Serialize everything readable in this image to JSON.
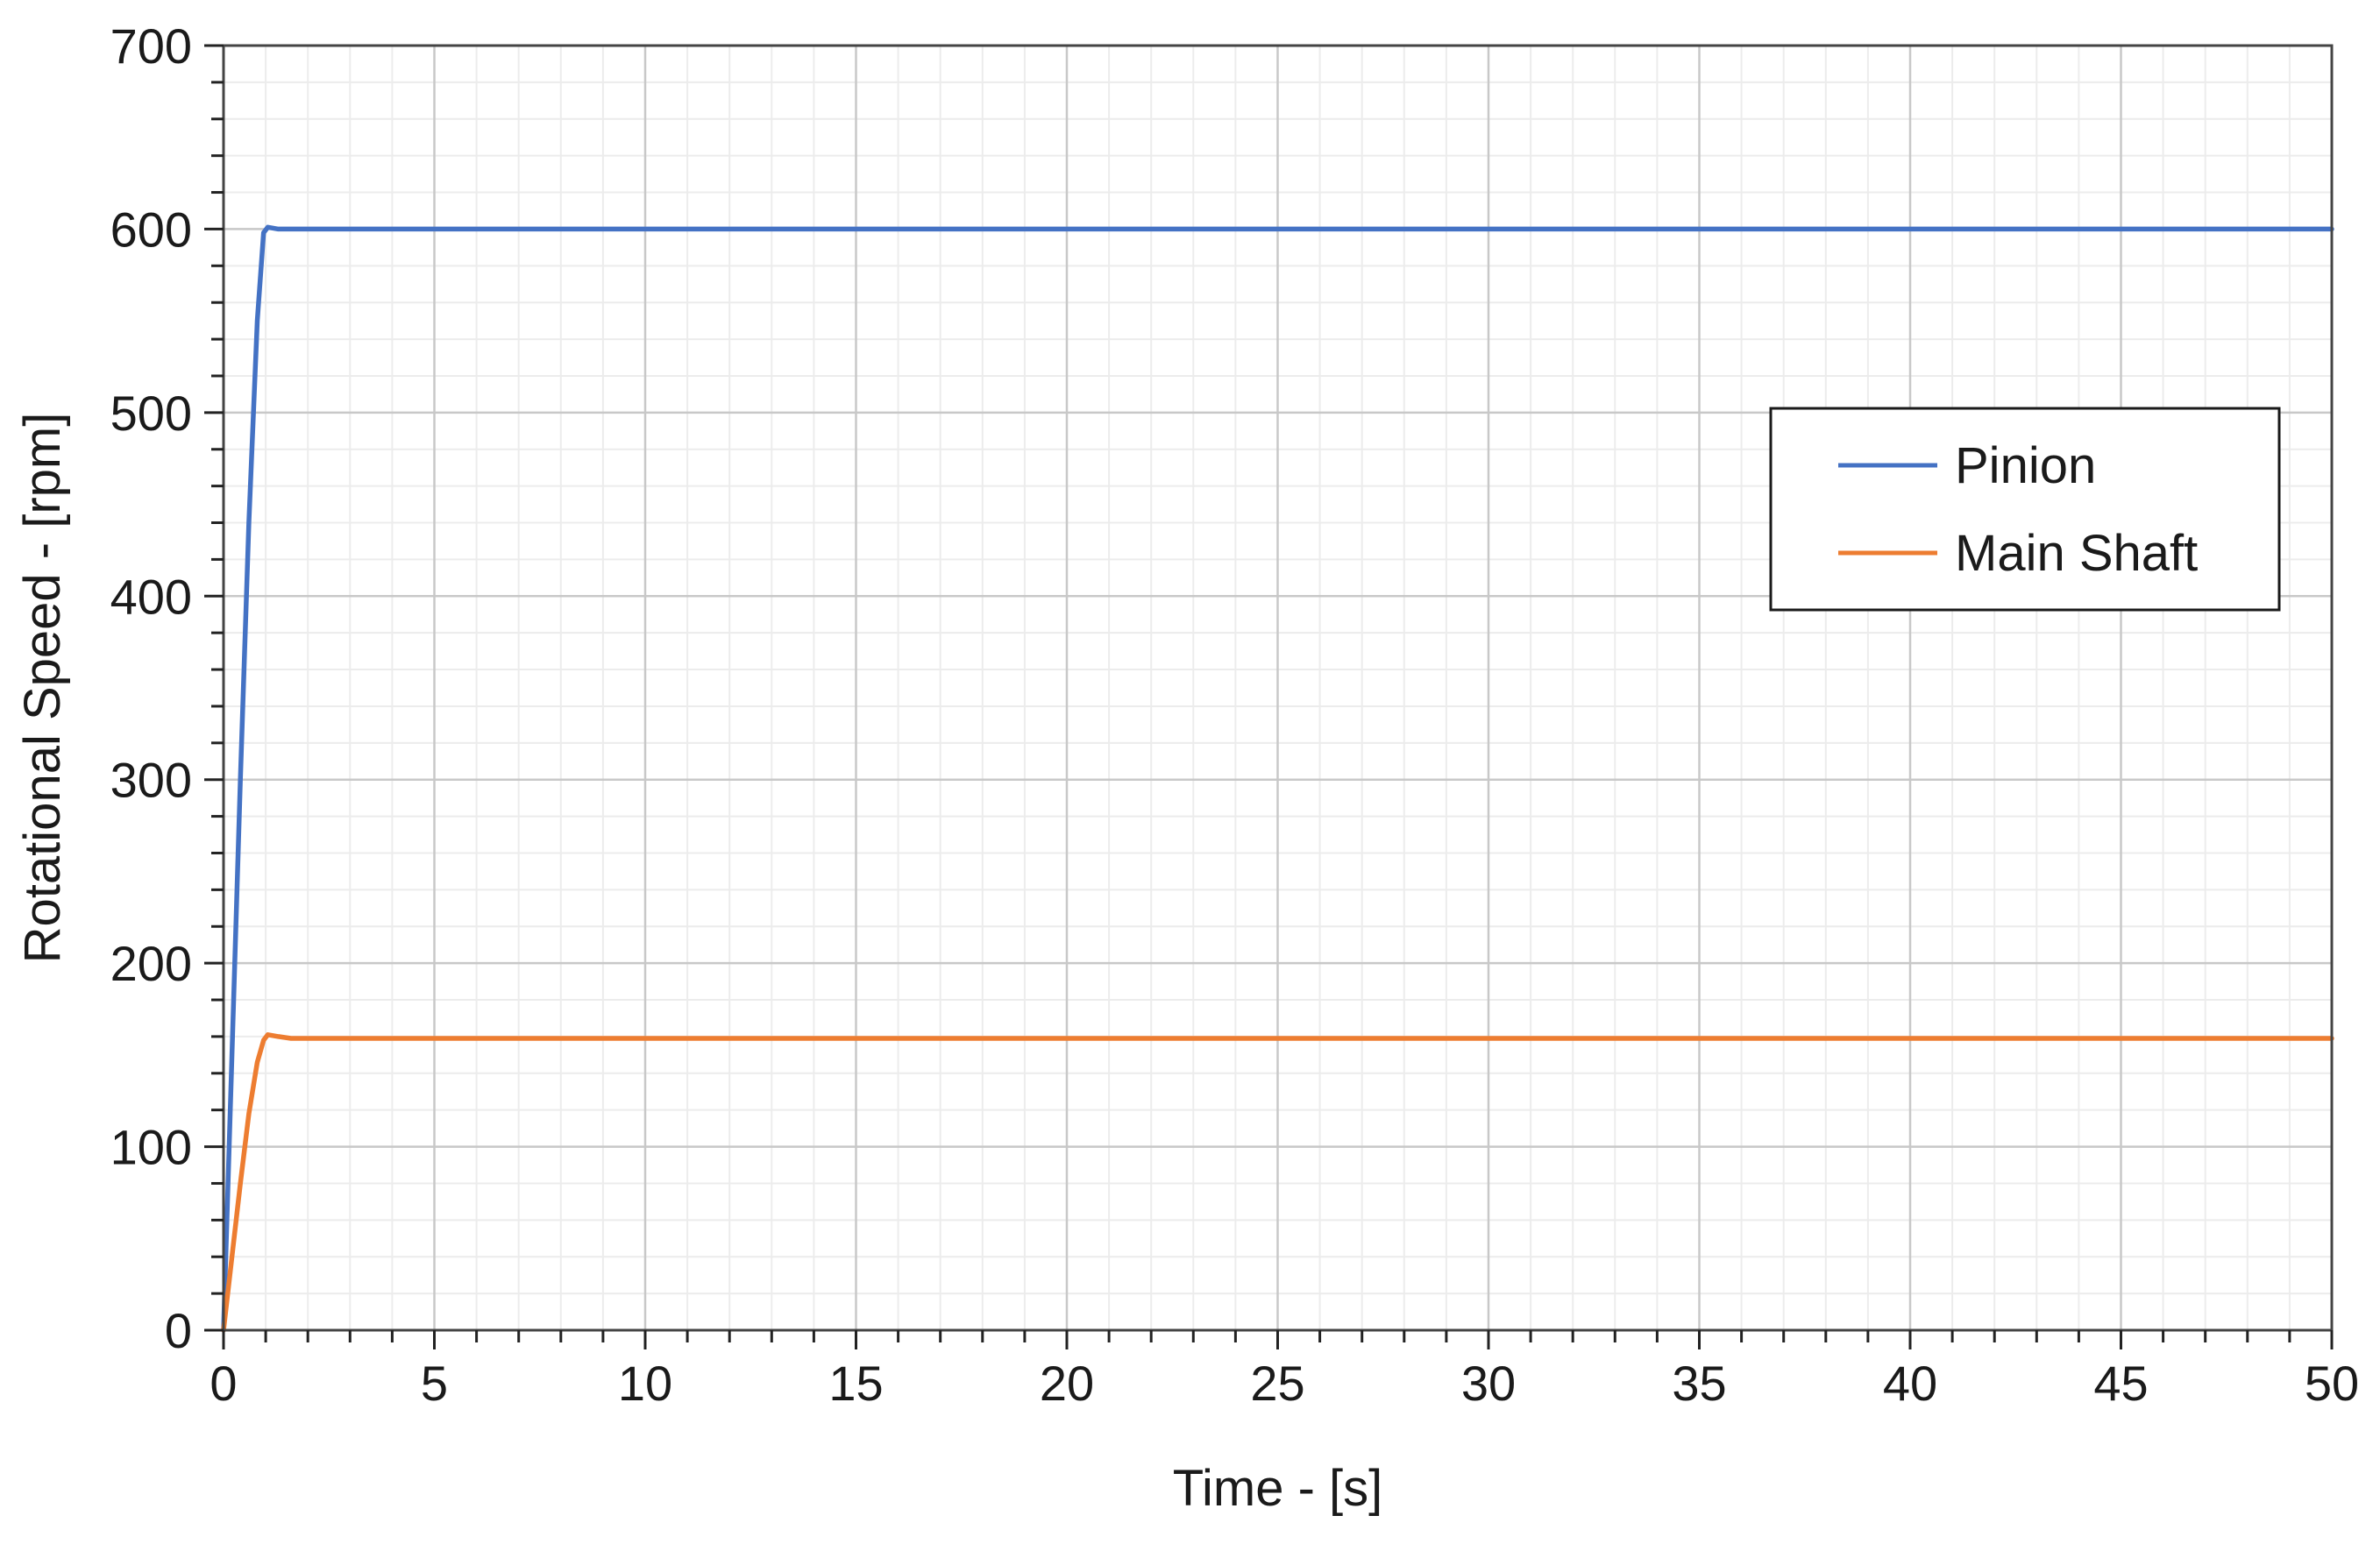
{
  "chart_data": {
    "type": "line",
    "title": "",
    "xlabel": "Time - [s]",
    "ylabel": "Rotational Speed - [rpm]",
    "xlim": [
      0,
      50
    ],
    "ylim": [
      0,
      700
    ],
    "xticks": [
      0,
      5,
      10,
      15,
      20,
      25,
      30,
      35,
      40,
      45,
      50
    ],
    "yticks": [
      0,
      100,
      200,
      300,
      400,
      500,
      600,
      700
    ],
    "x_minor_step": 1,
    "y_minor_step": 20,
    "grid": true,
    "legend_position": "center-right",
    "series": [
      {
        "name": "Pinion",
        "color": "#4472C4",
        "x": [
          0,
          0.2,
          0.4,
          0.6,
          0.8,
          0.95,
          1.05,
          1.3,
          1.6,
          2,
          5,
          10,
          15,
          20,
          25,
          30,
          35,
          40,
          45,
          50
        ],
        "y": [
          0,
          150,
          300,
          440,
          550,
          598,
          601,
          600,
          600,
          600,
          600,
          600,
          600,
          600,
          600,
          600,
          600,
          600,
          600,
          600
        ]
      },
      {
        "name": "Main Shaft",
        "color": "#ED7D31",
        "x": [
          0,
          0.2,
          0.4,
          0.6,
          0.8,
          0.95,
          1.05,
          1.3,
          1.6,
          2,
          5,
          10,
          15,
          20,
          25,
          30,
          35,
          40,
          45,
          50
        ],
        "y": [
          0,
          40,
          80,
          118,
          146,
          158,
          161,
          160,
          159,
          159,
          159,
          159,
          159,
          159,
          159,
          159,
          159,
          159,
          159,
          159
        ]
      }
    ]
  }
}
